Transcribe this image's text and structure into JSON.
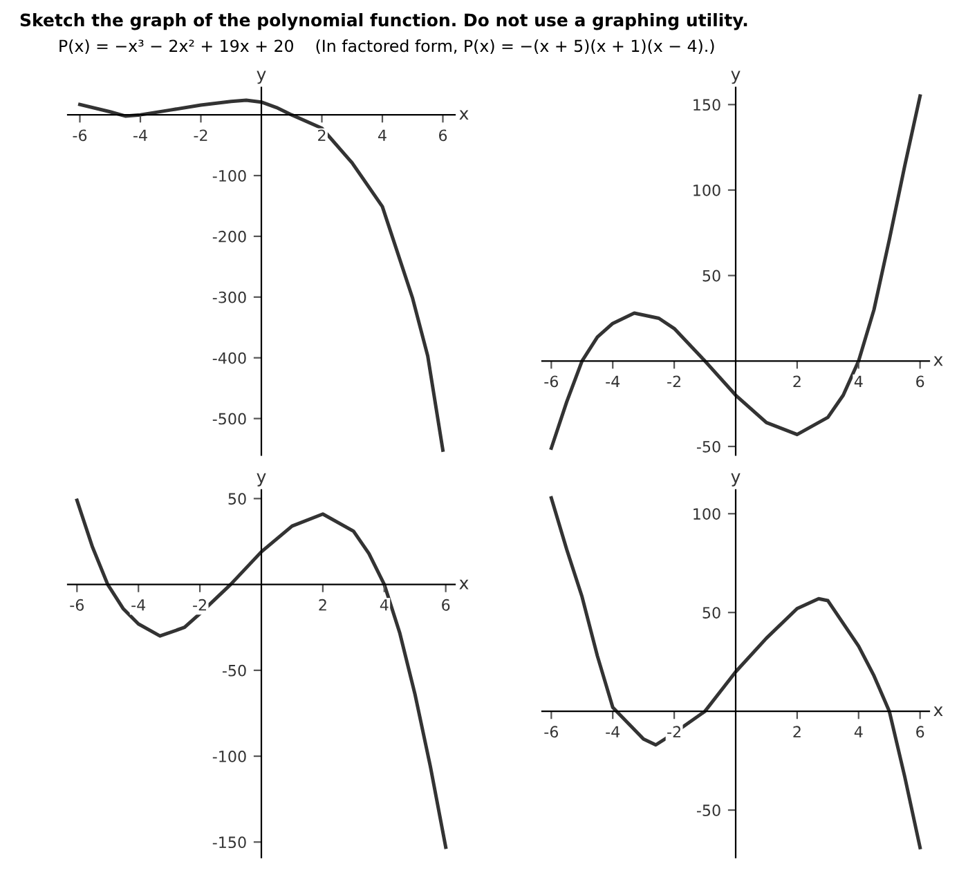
{
  "chart_data": [
    {
      "type": "line",
      "title": "Sketch the graph of the polynomial function. Do not use a graphing utility.",
      "subtitle": "P(x) = −x³ − 2x² + 19x + 20    (In factored form, P(x) = −(x + 5)(x + 1)(x − 4).)",
      "xlabel": "x",
      "ylabel": "y",
      "xlim": [
        -6.4,
        6.4
      ],
      "ylim": [
        -560,
        45
      ],
      "xticks": [
        -6,
        -4,
        -2,
        2,
        4,
        6
      ],
      "yticks": [
        -100,
        -200,
        -300,
        -400,
        -500
      ],
      "grid": false,
      "legend": false,
      "series": [
        {
          "color": "#333333",
          "x": [
            -6,
            -5,
            -4.5,
            -4,
            -3,
            -2,
            -1,
            -0.5,
            0,
            0.5,
            1,
            2,
            3,
            4,
            5,
            5.5,
            6
          ],
          "values": [
            17,
            5,
            -2,
            0,
            8,
            16,
            22,
            24,
            21,
            12,
            0,
            -22,
            -79,
            -151,
            -302,
            -397,
            -552
          ]
        }
      ]
    },
    {
      "type": "line",
      "xlabel": "x",
      "ylabel": "y",
      "xlim": [
        -6.3,
        6.3
      ],
      "ylim": [
        -55,
        160
      ],
      "xticks": [
        -6,
        -4,
        -2,
        2,
        4,
        6
      ],
      "yticks": [
        -50,
        50,
        100,
        150
      ],
      "grid": false,
      "legend": false,
      "series": [
        {
          "color": "#333333",
          "x": [
            -6,
            -5.5,
            -5,
            -4.5,
            -4,
            -3.3,
            -2.5,
            -2,
            -1,
            0,
            1,
            2,
            3,
            3.5,
            4,
            4.5,
            5,
            5.5,
            6
          ],
          "values": [
            -51,
            -24,
            0,
            14,
            22,
            28,
            25,
            19,
            0,
            -20,
            -36,
            -43,
            -33,
            -20,
            0,
            30,
            71,
            114,
            155
          ]
        }
      ]
    },
    {
      "type": "line",
      "xlabel": "x",
      "ylabel": "y",
      "xlim": [
        -6.3,
        6.3
      ],
      "ylim": [
        -159,
        55
      ],
      "xticks": [
        -6,
        -4,
        -2,
        2,
        4,
        6
      ],
      "yticks": [
        50,
        -50,
        -100,
        -150
      ],
      "grid": false,
      "legend": false,
      "series": [
        {
          "color": "#333333",
          "x": [
            -6,
            -5.5,
            -5,
            -4.5,
            -4,
            -3.3,
            -2.5,
            -2,
            -1,
            0,
            1,
            2,
            3,
            3.5,
            4,
            4.5,
            5,
            5.5,
            6
          ],
          "values": [
            49,
            22,
            0,
            -14,
            -23,
            -30,
            -25,
            -17,
            0,
            19,
            34,
            41,
            31,
            18,
            0,
            -28,
            -64,
            -106,
            -153
          ]
        }
      ]
    },
    {
      "type": "line",
      "xlabel": "x",
      "ylabel": "y",
      "xlim": [
        -6.3,
        6.3
      ],
      "ylim": [
        -74,
        112
      ],
      "xticks": [
        -6,
        -4,
        -2,
        2,
        4,
        6
      ],
      "yticks": [
        100,
        50,
        -50
      ],
      "grid": false,
      "legend": false,
      "series": [
        {
          "color": "#333333",
          "x": [
            -6,
            -5.5,
            -5,
            -4.5,
            -4,
            -3,
            -2.6,
            -2,
            -1,
            0,
            1,
            2,
            2.7,
            3,
            4,
            4.5,
            5,
            5.5,
            6
          ],
          "values": [
            108,
            82,
            58,
            28,
            2,
            -14,
            -17,
            -11,
            0,
            20,
            37,
            52,
            57,
            56,
            33,
            18,
            0,
            -33,
            -69
          ]
        }
      ]
    }
  ]
}
